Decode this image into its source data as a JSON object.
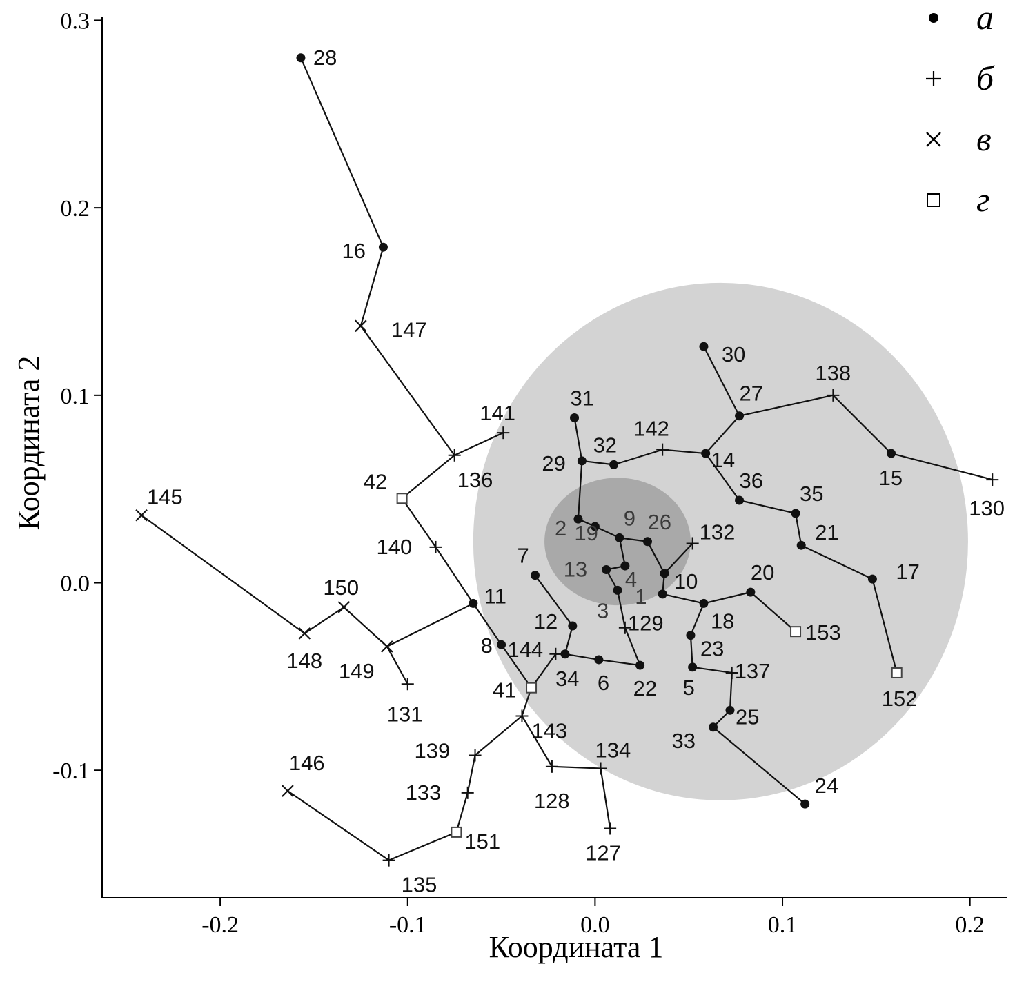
{
  "chart_data": {
    "type": "scatter",
    "title": "",
    "xlabel": "Координата 1",
    "ylabel": "Координата 2",
    "xlim": [
      -0.263,
      0.22
    ],
    "ylim": [
      -0.168,
      0.302
    ],
    "xticks": [
      {
        "v": -0.2,
        "label": "-0.2"
      },
      {
        "v": -0.1,
        "label": "-0.1"
      },
      {
        "v": 0.0,
        "label": "0.0"
      },
      {
        "v": 0.1,
        "label": "0.1"
      },
      {
        "v": 0.2,
        "label": "0.2"
      }
    ],
    "yticks": [
      {
        "v": -0.1,
        "label": "-0.1"
      },
      {
        "v": 0.0,
        "label": "0.0"
      },
      {
        "v": 0.1,
        "label": "0.1"
      },
      {
        "v": 0.2,
        "label": "0.2"
      },
      {
        "v": 0.3,
        "label": "0.3"
      }
    ],
    "legend": {
      "placement": "top-right",
      "items": [
        {
          "marker": "dot",
          "label": "а"
        },
        {
          "marker": "plus",
          "label": "б"
        },
        {
          "marker": "x",
          "label": "в"
        },
        {
          "marker": "square",
          "label": "г"
        }
      ]
    },
    "regions": [
      {
        "name": "outer-region",
        "cx": 0.067,
        "cy": 0.022,
        "rx": 0.132,
        "ry": 0.138,
        "color": "#d3d3d3"
      },
      {
        "name": "inner-region",
        "cx": 0.012,
        "cy": 0.022,
        "rx": 0.039,
        "ry": 0.034,
        "color": "#a9a9a9"
      }
    ],
    "points": [
      {
        "id": "28",
        "type": "dot",
        "x": -0.157,
        "y": 0.28
      },
      {
        "id": "16",
        "type": "dot",
        "x": -0.113,
        "y": 0.179
      },
      {
        "id": "147",
        "type": "x",
        "x": -0.125,
        "y": 0.137
      },
      {
        "id": "136",
        "type": "plus",
        "x": -0.075,
        "y": 0.068
      },
      {
        "id": "141",
        "type": "plus",
        "x": -0.049,
        "y": 0.08
      },
      {
        "id": "42",
        "type": "square",
        "x": -0.103,
        "y": 0.045
      },
      {
        "id": "140",
        "type": "plus",
        "x": -0.085,
        "y": 0.019
      },
      {
        "id": "11",
        "type": "dot",
        "x": -0.065,
        "y": -0.011
      },
      {
        "id": "8",
        "type": "dot",
        "x": -0.05,
        "y": -0.033
      },
      {
        "id": "41",
        "type": "square",
        "x": -0.034,
        "y": -0.056
      },
      {
        "id": "144",
        "type": "plus",
        "x": -0.021,
        "y": -0.038
      },
      {
        "id": "34",
        "type": "dot",
        "x": -0.016,
        "y": -0.038
      },
      {
        "id": "12",
        "type": "dot",
        "x": -0.012,
        "y": -0.023
      },
      {
        "id": "7",
        "type": "dot",
        "x": -0.032,
        "y": 0.004
      },
      {
        "id": "6",
        "type": "dot",
        "x": 0.002,
        "y": -0.041
      },
      {
        "id": "22",
        "type": "dot",
        "x": 0.024,
        "y": -0.044
      },
      {
        "id": "129",
        "type": "plus",
        "x": 0.016,
        "y": -0.024
      },
      {
        "id": "143",
        "type": "plus",
        "x": -0.039,
        "y": -0.071
      },
      {
        "id": "128",
        "type": "plus",
        "x": -0.023,
        "y": -0.098
      },
      {
        "id": "134",
        "type": "plus",
        "x": 0.003,
        "y": -0.099
      },
      {
        "id": "127",
        "type": "plus",
        "x": 0.008,
        "y": -0.131
      },
      {
        "id": "139",
        "type": "plus",
        "x": -0.064,
        "y": -0.092
      },
      {
        "id": "133",
        "type": "plus",
        "x": -0.068,
        "y": -0.112
      },
      {
        "id": "151",
        "type": "square",
        "x": -0.074,
        "y": -0.133
      },
      {
        "id": "135",
        "type": "plus",
        "x": -0.11,
        "y": -0.148
      },
      {
        "id": "146",
        "type": "x",
        "x": -0.164,
        "y": -0.111
      },
      {
        "id": "149",
        "type": "x",
        "x": -0.111,
        "y": -0.034
      },
      {
        "id": "131",
        "type": "plus",
        "x": -0.1,
        "y": -0.054
      },
      {
        "id": "148",
        "type": "x",
        "x": -0.155,
        "y": -0.027
      },
      {
        "id": "150",
        "type": "x",
        "x": -0.134,
        "y": -0.013
      },
      {
        "id": "145",
        "type": "x",
        "x": -0.242,
        "y": 0.036
      },
      {
        "id": "31",
        "type": "dot",
        "x": -0.011,
        "y": 0.088
      },
      {
        "id": "29",
        "type": "dot",
        "x": -0.007,
        "y": 0.065
      },
      {
        "id": "32",
        "type": "dot",
        "x": 0.01,
        "y": 0.063
      },
      {
        "id": "142",
        "type": "plus",
        "x": 0.036,
        "y": 0.071
      },
      {
        "id": "14",
        "type": "dot",
        "x": 0.059,
        "y": 0.069
      },
      {
        "id": "27",
        "type": "dot",
        "x": 0.077,
        "y": 0.089
      },
      {
        "id": "30",
        "type": "dot",
        "x": 0.058,
        "y": 0.126
      },
      {
        "id": "138",
        "type": "plus",
        "x": 0.127,
        "y": 0.1
      },
      {
        "id": "15",
        "type": "dot",
        "x": 0.158,
        "y": 0.069
      },
      {
        "id": "130",
        "type": "plus",
        "x": 0.212,
        "y": 0.055
      },
      {
        "id": "36",
        "type": "dot",
        "x": 0.077,
        "y": 0.044
      },
      {
        "id": "35",
        "type": "dot",
        "x": 0.107,
        "y": 0.037
      },
      {
        "id": "21",
        "type": "dot",
        "x": 0.11,
        "y": 0.02
      },
      {
        "id": "17",
        "type": "dot",
        "x": 0.148,
        "y": 0.002
      },
      {
        "id": "152",
        "type": "square",
        "x": 0.161,
        "y": -0.048
      },
      {
        "id": "2",
        "type": "dot",
        "x": -0.009,
        "y": 0.034
      },
      {
        "id": "19",
        "type": "dot",
        "x": 0.0,
        "y": 0.03
      },
      {
        "id": "9",
        "type": "dot",
        "x": 0.013,
        "y": 0.024
      },
      {
        "id": "26",
        "type": "dot",
        "x": 0.028,
        "y": 0.022
      },
      {
        "id": "13",
        "type": "dot",
        "x": 0.006,
        "y": 0.007
      },
      {
        "id": "4",
        "type": "dot",
        "x": 0.016,
        "y": 0.009
      },
      {
        "id": "3",
        "type": "dot",
        "x": 0.012,
        "y": -0.004
      },
      {
        "id": "10",
        "type": "dot",
        "x": 0.037,
        "y": 0.005
      },
      {
        "id": "1",
        "type": "dot",
        "x": 0.036,
        "y": -0.006
      },
      {
        "id": "132",
        "type": "plus",
        "x": 0.052,
        "y": 0.021
      },
      {
        "id": "18",
        "type": "dot",
        "x": 0.058,
        "y": -0.011
      },
      {
        "id": "20",
        "type": "dot",
        "x": 0.083,
        "y": -0.005
      },
      {
        "id": "153",
        "type": "square",
        "x": 0.107,
        "y": -0.026
      },
      {
        "id": "23",
        "type": "dot",
        "x": 0.051,
        "y": -0.028
      },
      {
        "id": "5",
        "type": "dot",
        "x": 0.052,
        "y": -0.045
      },
      {
        "id": "137",
        "type": "plus",
        "x": 0.073,
        "y": -0.048
      },
      {
        "id": "25",
        "type": "dot",
        "x": 0.072,
        "y": -0.068
      },
      {
        "id": "33",
        "type": "dot",
        "x": 0.063,
        "y": -0.077
      },
      {
        "id": "24",
        "type": "dot",
        "x": 0.112,
        "y": -0.118
      }
    ],
    "edges": [
      [
        "28",
        "16"
      ],
      [
        "16",
        "147"
      ],
      [
        "147",
        "136"
      ],
      [
        "136",
        "141"
      ],
      [
        "136",
        "42"
      ],
      [
        "42",
        "140"
      ],
      [
        "140",
        "11"
      ],
      [
        "11",
        "8"
      ],
      [
        "8",
        "41"
      ],
      [
        "41",
        "144"
      ],
      [
        "144",
        "34"
      ],
      [
        "34",
        "12"
      ],
      [
        "12",
        "7"
      ],
      [
        "34",
        "6"
      ],
      [
        "6",
        "22"
      ],
      [
        "22",
        "129"
      ],
      [
        "129",
        "3"
      ],
      [
        "41",
        "143"
      ],
      [
        "143",
        "128"
      ],
      [
        "128",
        "134"
      ],
      [
        "134",
        "127"
      ],
      [
        "143",
        "139"
      ],
      [
        "139",
        "133"
      ],
      [
        "133",
        "151"
      ],
      [
        "151",
        "135"
      ],
      [
        "135",
        "146"
      ],
      [
        "11",
        "149"
      ],
      [
        "149",
        "131"
      ],
      [
        "149",
        "150"
      ],
      [
        "150",
        "148"
      ],
      [
        "148",
        "145"
      ],
      [
        "31",
        "29"
      ],
      [
        "29",
        "32"
      ],
      [
        "32",
        "142"
      ],
      [
        "142",
        "14"
      ],
      [
        "14",
        "27"
      ],
      [
        "27",
        "30"
      ],
      [
        "27",
        "138"
      ],
      [
        "138",
        "15"
      ],
      [
        "15",
        "130"
      ],
      [
        "14",
        "36"
      ],
      [
        "36",
        "35"
      ],
      [
        "35",
        "21"
      ],
      [
        "21",
        "17"
      ],
      [
        "17",
        "152"
      ],
      [
        "29",
        "2"
      ],
      [
        "2",
        "19"
      ],
      [
        "19",
        "9"
      ],
      [
        "9",
        "26"
      ],
      [
        "26",
        "10"
      ],
      [
        "9",
        "4"
      ],
      [
        "4",
        "13"
      ],
      [
        "13",
        "3"
      ],
      [
        "10",
        "132"
      ],
      [
        "10",
        "1"
      ],
      [
        "1",
        "18"
      ],
      [
        "18",
        "20"
      ],
      [
        "20",
        "153"
      ],
      [
        "18",
        "23"
      ],
      [
        "23",
        "5"
      ],
      [
        "5",
        "137"
      ],
      [
        "137",
        "25"
      ],
      [
        "25",
        "33"
      ],
      [
        "33",
        "24"
      ]
    ],
    "labels": [
      {
        "id": "28",
        "dx": 18,
        "dy": 10
      },
      {
        "id": "16",
        "dx": -60,
        "dy": 16
      },
      {
        "id": "147",
        "dx": 44,
        "dy": 16
      },
      {
        "id": "136",
        "dx": 4,
        "dy": 46
      },
      {
        "id": "141",
        "dx": -34,
        "dy": -18
      },
      {
        "id": "42",
        "dx": -56,
        "dy": -14
      },
      {
        "id": "140",
        "dx": -86,
        "dy": 10
      },
      {
        "id": "11",
        "dx": 16,
        "dy": 0
      },
      {
        "id": "8",
        "dx": -30,
        "dy": 12
      },
      {
        "id": "41",
        "dx": -56,
        "dy": 14
      },
      {
        "id": "144",
        "dx": -70,
        "dy": 4
      },
      {
        "id": "34",
        "dx": -14,
        "dy": 46
      },
      {
        "id": "12",
        "dx": -56,
        "dy": 4
      },
      {
        "id": "7",
        "dx": -26,
        "dy": -18
      },
      {
        "id": "6",
        "dx": -2,
        "dy": 44
      },
      {
        "id": "22",
        "dx": -10,
        "dy": 44
      },
      {
        "id": "129",
        "dx": 4,
        "dy": 4
      },
      {
        "id": "143",
        "dx": 14,
        "dy": 32
      },
      {
        "id": "128",
        "dx": -26,
        "dy": 60
      },
      {
        "id": "134",
        "dx": -8,
        "dy": -16
      },
      {
        "id": "127",
        "dx": -36,
        "dy": 46
      },
      {
        "id": "139",
        "dx": -88,
        "dy": 4
      },
      {
        "id": "133",
        "dx": -90,
        "dy": 10
      },
      {
        "id": "151",
        "dx": 12,
        "dy": 24
      },
      {
        "id": "135",
        "dx": 18,
        "dy": 46
      },
      {
        "id": "146",
        "dx": 2,
        "dy": -30
      },
      {
        "id": "149",
        "dx": -70,
        "dy": 46
      },
      {
        "id": "131",
        "dx": -30,
        "dy": 54
      },
      {
        "id": "148",
        "dx": -26,
        "dy": 50
      },
      {
        "id": "150",
        "dx": -30,
        "dy": -18
      },
      {
        "id": "145",
        "dx": 8,
        "dy": -16
      },
      {
        "id": "31",
        "dx": -6,
        "dy": -18
      },
      {
        "id": "29",
        "dx": -58,
        "dy": 14
      },
      {
        "id": "32",
        "dx": -30,
        "dy": -18
      },
      {
        "id": "142",
        "dx": -42,
        "dy": -20
      },
      {
        "id": "14",
        "dx": 8,
        "dy": 20
      },
      {
        "id": "27",
        "dx": 0,
        "dy": -22
      },
      {
        "id": "30",
        "dx": 26,
        "dy": 22
      },
      {
        "id": "138",
        "dx": -26,
        "dy": -22
      },
      {
        "id": "15",
        "dx": -18,
        "dy": 46
      },
      {
        "id": "130",
        "dx": -34,
        "dy": 52
      },
      {
        "id": "36",
        "dx": 0,
        "dy": -18
      },
      {
        "id": "35",
        "dx": 6,
        "dy": -18
      },
      {
        "id": "21",
        "dx": 20,
        "dy": -8
      },
      {
        "id": "17",
        "dx": 34,
        "dy": 0
      },
      {
        "id": "152",
        "dx": -22,
        "dy": 48
      },
      {
        "id": "2",
        "dx": -34,
        "dy": 24,
        "inner": true
      },
      {
        "id": "19",
        "dx": -30,
        "dy": 20,
        "inner": true
      },
      {
        "id": "9",
        "dx": 6,
        "dy": -18,
        "inner": true
      },
      {
        "id": "26",
        "dx": 0,
        "dy": -18,
        "inner": true
      },
      {
        "id": "13",
        "dx": -62,
        "dy": 10,
        "inner": true
      },
      {
        "id": "4",
        "dx": 0,
        "dy": 30,
        "inner": true
      },
      {
        "id": "3",
        "dx": -30,
        "dy": 40,
        "inner": true
      },
      {
        "id": "10",
        "dx": 14,
        "dy": 22
      },
      {
        "id": "1",
        "dx": -40,
        "dy": 14,
        "inner": true
      },
      {
        "id": "132",
        "dx": 10,
        "dy": -6
      },
      {
        "id": "18",
        "dx": 10,
        "dy": 36
      },
      {
        "id": "20",
        "dx": 0,
        "dy": -18
      },
      {
        "id": "153",
        "dx": 14,
        "dy": 12
      },
      {
        "id": "23",
        "dx": 14,
        "dy": 30
      },
      {
        "id": "5",
        "dx": -14,
        "dy": 40
      },
      {
        "id": "137",
        "dx": 4,
        "dy": 8
      },
      {
        "id": "25",
        "dx": 8,
        "dy": 20
      },
      {
        "id": "33",
        "dx": -60,
        "dy": 30
      },
      {
        "id": "24",
        "dx": 14,
        "dy": -16
      }
    ]
  }
}
